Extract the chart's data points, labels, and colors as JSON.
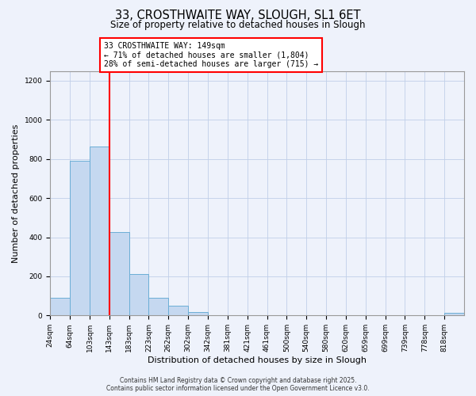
{
  "title": "33, CROSTHWAITE WAY, SLOUGH, SL1 6ET",
  "subtitle": "Size of property relative to detached houses in Slough",
  "xlabel": "Distribution of detached houses by size in Slough",
  "ylabel": "Number of detached properties",
  "bar_labels": [
    "24sqm",
    "64sqm",
    "103sqm",
    "143sqm",
    "183sqm",
    "223sqm",
    "262sqm",
    "302sqm",
    "342sqm",
    "381sqm",
    "421sqm",
    "461sqm",
    "500sqm",
    "540sqm",
    "580sqm",
    "620sqm",
    "659sqm",
    "699sqm",
    "739sqm",
    "778sqm",
    "818sqm"
  ],
  "bar_heights": [
    90,
    790,
    865,
    425,
    210,
    90,
    50,
    18,
    0,
    0,
    0,
    0,
    0,
    0,
    0,
    0,
    0,
    0,
    0,
    0,
    14
  ],
  "bar_color": "#c5d8f0",
  "bar_edgecolor": "#6baed6",
  "bar_linewidth": 0.7,
  "vline_x_idx": 3,
  "vline_color": "red",
  "vline_linewidth": 1.5,
  "annotation_line1": "33 CROSTHWAITE WAY: 149sqm",
  "annotation_line2": "← 71% of detached houses are smaller (1,804)",
  "annotation_line3": "28% of semi-detached houses are larger (715) →",
  "annotation_box_edgecolor": "red",
  "ylim": [
    0,
    1250
  ],
  "yticks": [
    0,
    200,
    400,
    600,
    800,
    1000,
    1200
  ],
  "footer_line1": "Contains HM Land Registry data © Crown copyright and database right 2025.",
  "footer_line2": "Contains public sector information licensed under the Open Government Licence v3.0.",
  "background_color": "#eef2fb",
  "grid_color": "#c0cfe8",
  "fig_width": 6.0,
  "fig_height": 5.0,
  "dpi": 100,
  "title_fontsize": 10.5,
  "subtitle_fontsize": 8.5,
  "axis_label_fontsize": 8,
  "tick_fontsize": 6.5,
  "annotation_fontsize": 7,
  "footer_fontsize": 5.5
}
